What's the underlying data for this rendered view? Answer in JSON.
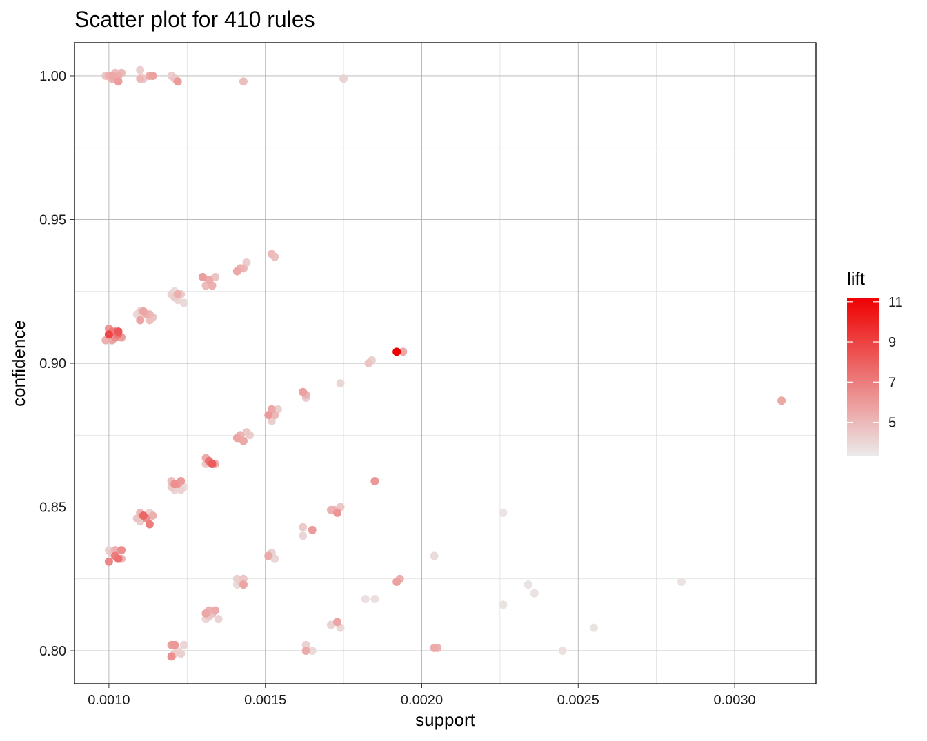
{
  "chart_data": {
    "type": "scatter",
    "title": "Scatter plot for 410 rules",
    "xlabel": "support",
    "ylabel": "confidence",
    "xlim": [
      0.00089,
      0.00326
    ],
    "ylim": [
      0.7885,
      1.0115
    ],
    "x_ticks": [
      0.001,
      0.0015,
      0.002,
      0.0025,
      0.003
    ],
    "x_tick_labels": [
      "0.0010",
      "0.0015",
      "0.0020",
      "0.0025",
      "0.0030"
    ],
    "y_ticks": [
      0.8,
      0.85,
      0.9,
      0.95,
      1.0
    ],
    "y_tick_labels": [
      "0.80",
      "0.85",
      "0.90",
      "0.95",
      "1.00"
    ],
    "grid": true,
    "legend": {
      "title": "lift",
      "placement": "right",
      "color_low": "#ebebeb",
      "color_high": "#ee0000",
      "range": [
        3.3,
        11.2
      ],
      "ticks": [
        5,
        7,
        9,
        11
      ],
      "tick_labels": [
        "5",
        "7",
        "9",
        "11"
      ]
    },
    "point_fields": [
      "support",
      "confidence",
      "lift"
    ],
    "points": [
      [
        0.001,
        1.0,
        5.2
      ],
      [
        0.00101,
        1.0,
        5.6
      ],
      [
        0.00102,
        1.001,
        4.8
      ],
      [
        0.00103,
        1.0,
        5.4
      ],
      [
        0.00103,
        0.998,
        5.9
      ],
      [
        0.00104,
        1.001,
        5.0
      ],
      [
        0.00099,
        1.0,
        4.6
      ],
      [
        0.00101,
        0.999,
        5.3
      ],
      [
        0.0011,
        1.002,
        4.2
      ],
      [
        0.00111,
        0.999,
        4.5
      ],
      [
        0.0011,
        0.999,
        5.0
      ],
      [
        0.00113,
        1.0,
        5.5
      ],
      [
        0.00114,
        1.0,
        5.8
      ],
      [
        0.0012,
        1.0,
        4.3
      ],
      [
        0.00121,
        0.999,
        4.6
      ],
      [
        0.00122,
        0.998,
        6.0
      ],
      [
        0.00143,
        0.998,
        4.8
      ],
      [
        0.00175,
        0.999,
        4.1
      ],
      [
        0.00152,
        0.938,
        4.9
      ],
      [
        0.00153,
        0.937,
        4.7
      ],
      [
        0.00141,
        0.932,
        5.6
      ],
      [
        0.00142,
        0.933,
        5.2
      ],
      [
        0.00143,
        0.933,
        5.0
      ],
      [
        0.00144,
        0.935,
        4.3
      ],
      [
        0.0013,
        0.93,
        5.9
      ],
      [
        0.00132,
        0.929,
        5.5
      ],
      [
        0.00133,
        0.927,
        5.3
      ],
      [
        0.00131,
        0.927,
        4.9
      ],
      [
        0.00134,
        0.93,
        4.6
      ],
      [
        0.0012,
        0.924,
        4.1
      ],
      [
        0.00121,
        0.923,
        4.3
      ],
      [
        0.00122,
        0.924,
        5.3
      ],
      [
        0.00123,
        0.924,
        4.4
      ],
      [
        0.00122,
        0.922,
        4.0
      ],
      [
        0.00124,
        0.921,
        3.9
      ],
      [
        0.00121,
        0.925,
        3.8
      ],
      [
        0.0011,
        0.918,
        4.2
      ],
      [
        0.00111,
        0.918,
        5.7
      ],
      [
        0.00112,
        0.917,
        5.3
      ],
      [
        0.00113,
        0.917,
        5.0
      ],
      [
        0.00114,
        0.916,
        4.6
      ],
      [
        0.0011,
        0.915,
        5.7
      ],
      [
        0.00113,
        0.915,
        4.7
      ],
      [
        0.00109,
        0.917,
        3.9
      ],
      [
        0.001,
        0.91,
        8.9
      ],
      [
        0.00101,
        0.911,
        7.0
      ],
      [
        0.00102,
        0.909,
        6.5
      ],
      [
        0.00103,
        0.91,
        7.3
      ],
      [
        0.00103,
        0.911,
        8.3
      ],
      [
        0.00099,
        0.908,
        5.2
      ],
      [
        0.00101,
        0.908,
        5.6
      ],
      [
        0.00104,
        0.909,
        5.9
      ],
      [
        0.001,
        0.912,
        6.2
      ],
      [
        0.00102,
        0.911,
        6.8
      ],
      [
        0.00192,
        0.904,
        11.2
      ],
      [
        0.00194,
        0.904,
        5.5
      ],
      [
        0.00183,
        0.9,
        4.6
      ],
      [
        0.00184,
        0.901,
        4.2
      ],
      [
        0.00174,
        0.893,
        4.0
      ],
      [
        0.00162,
        0.89,
        5.8
      ],
      [
        0.00163,
        0.889,
        5.1
      ],
      [
        0.00163,
        0.888,
        4.3
      ],
      [
        0.00315,
        0.887,
        5.6
      ],
      [
        0.00151,
        0.882,
        6.0
      ],
      [
        0.00152,
        0.884,
        5.6
      ],
      [
        0.00153,
        0.882,
        5.0
      ],
      [
        0.00152,
        0.88,
        4.3
      ],
      [
        0.00154,
        0.884,
        4.2
      ],
      [
        0.00141,
        0.874,
        5.7
      ],
      [
        0.00142,
        0.875,
        5.2
      ],
      [
        0.00143,
        0.873,
        5.6
      ],
      [
        0.00144,
        0.876,
        4.5
      ],
      [
        0.00145,
        0.875,
        4.3
      ],
      [
        0.00131,
        0.867,
        5.5
      ],
      [
        0.00132,
        0.866,
        7.4
      ],
      [
        0.00133,
        0.865,
        8.1
      ],
      [
        0.00134,
        0.865,
        5.2
      ],
      [
        0.00131,
        0.865,
        4.4
      ],
      [
        0.00121,
        0.858,
        6.4
      ],
      [
        0.00122,
        0.858,
        6.0
      ],
      [
        0.00123,
        0.859,
        6.0
      ],
      [
        0.0012,
        0.857,
        4.4
      ],
      [
        0.00121,
        0.856,
        4.1
      ],
      [
        0.00123,
        0.856,
        4.1
      ],
      [
        0.00124,
        0.857,
        3.8
      ],
      [
        0.0012,
        0.859,
        4.8
      ],
      [
        0.00185,
        0.859,
        6.1
      ],
      [
        0.0011,
        0.848,
        5.0
      ],
      [
        0.00111,
        0.847,
        7.8
      ],
      [
        0.00112,
        0.846,
        6.4
      ],
      [
        0.00113,
        0.844,
        7.0
      ],
      [
        0.00114,
        0.847,
        5.2
      ],
      [
        0.0011,
        0.845,
        4.3
      ],
      [
        0.00109,
        0.846,
        4.6
      ],
      [
        0.00113,
        0.848,
        4.1
      ],
      [
        0.00171,
        0.849,
        5.3
      ],
      [
        0.00172,
        0.849,
        5.0
      ],
      [
        0.00173,
        0.848,
        6.2
      ],
      [
        0.00174,
        0.85,
        4.5
      ],
      [
        0.00226,
        0.848,
        3.6
      ],
      [
        0.00162,
        0.843,
        4.4
      ],
      [
        0.00162,
        0.84,
        4.0
      ],
      [
        0.00165,
        0.842,
        6.0
      ],
      [
        0.001,
        0.831,
        6.7
      ],
      [
        0.00101,
        0.834,
        4.6
      ],
      [
        0.00102,
        0.833,
        7.0
      ],
      [
        0.00103,
        0.832,
        7.4
      ],
      [
        0.00104,
        0.835,
        6.5
      ],
      [
        0.00104,
        0.832,
        5.1
      ],
      [
        0.001,
        0.835,
        4.2
      ],
      [
        0.00102,
        0.835,
        5.2
      ],
      [
        0.00152,
        0.834,
        4.2
      ],
      [
        0.00151,
        0.833,
        5.5
      ],
      [
        0.00153,
        0.832,
        4.0
      ],
      [
        0.00204,
        0.833,
        3.8
      ],
      [
        0.00192,
        0.824,
        5.8
      ],
      [
        0.00193,
        0.825,
        5.3
      ],
      [
        0.00141,
        0.825,
        4.2
      ],
      [
        0.00142,
        0.824,
        4.3
      ],
      [
        0.00143,
        0.823,
        5.7
      ],
      [
        0.00141,
        0.823,
        3.8
      ],
      [
        0.00143,
        0.825,
        4.5
      ],
      [
        0.00234,
        0.823,
        3.6
      ],
      [
        0.00236,
        0.82,
        3.6
      ],
      [
        0.00283,
        0.824,
        3.6
      ],
      [
        0.00182,
        0.818,
        3.7
      ],
      [
        0.00185,
        0.818,
        3.7
      ],
      [
        0.00226,
        0.816,
        3.6
      ],
      [
        0.00131,
        0.813,
        5.6
      ],
      [
        0.00132,
        0.814,
        5.2
      ],
      [
        0.00133,
        0.813,
        4.6
      ],
      [
        0.00134,
        0.814,
        5.5
      ],
      [
        0.00131,
        0.811,
        4.0
      ],
      [
        0.00135,
        0.811,
        4.1
      ],
      [
        0.00132,
        0.812,
        4.4
      ],
      [
        0.00171,
        0.809,
        4.1
      ],
      [
        0.00173,
        0.81,
        5.7
      ],
      [
        0.00174,
        0.808,
        3.9
      ],
      [
        0.00255,
        0.808,
        3.6
      ],
      [
        0.0012,
        0.802,
        5.8
      ],
      [
        0.00121,
        0.802,
        6.1
      ],
      [
        0.0012,
        0.798,
        6.4
      ],
      [
        0.00121,
        0.799,
        4.3
      ],
      [
        0.00122,
        0.8,
        4.0
      ],
      [
        0.00123,
        0.799,
        4.2
      ],
      [
        0.00124,
        0.802,
        4.0
      ],
      [
        0.00163,
        0.802,
        4.1
      ],
      [
        0.00163,
        0.8,
        5.5
      ],
      [
        0.00165,
        0.8,
        3.9
      ],
      [
        0.00204,
        0.801,
        5.5
      ],
      [
        0.00205,
        0.801,
        5.2
      ],
      [
        0.00245,
        0.8,
        3.7
      ]
    ]
  }
}
